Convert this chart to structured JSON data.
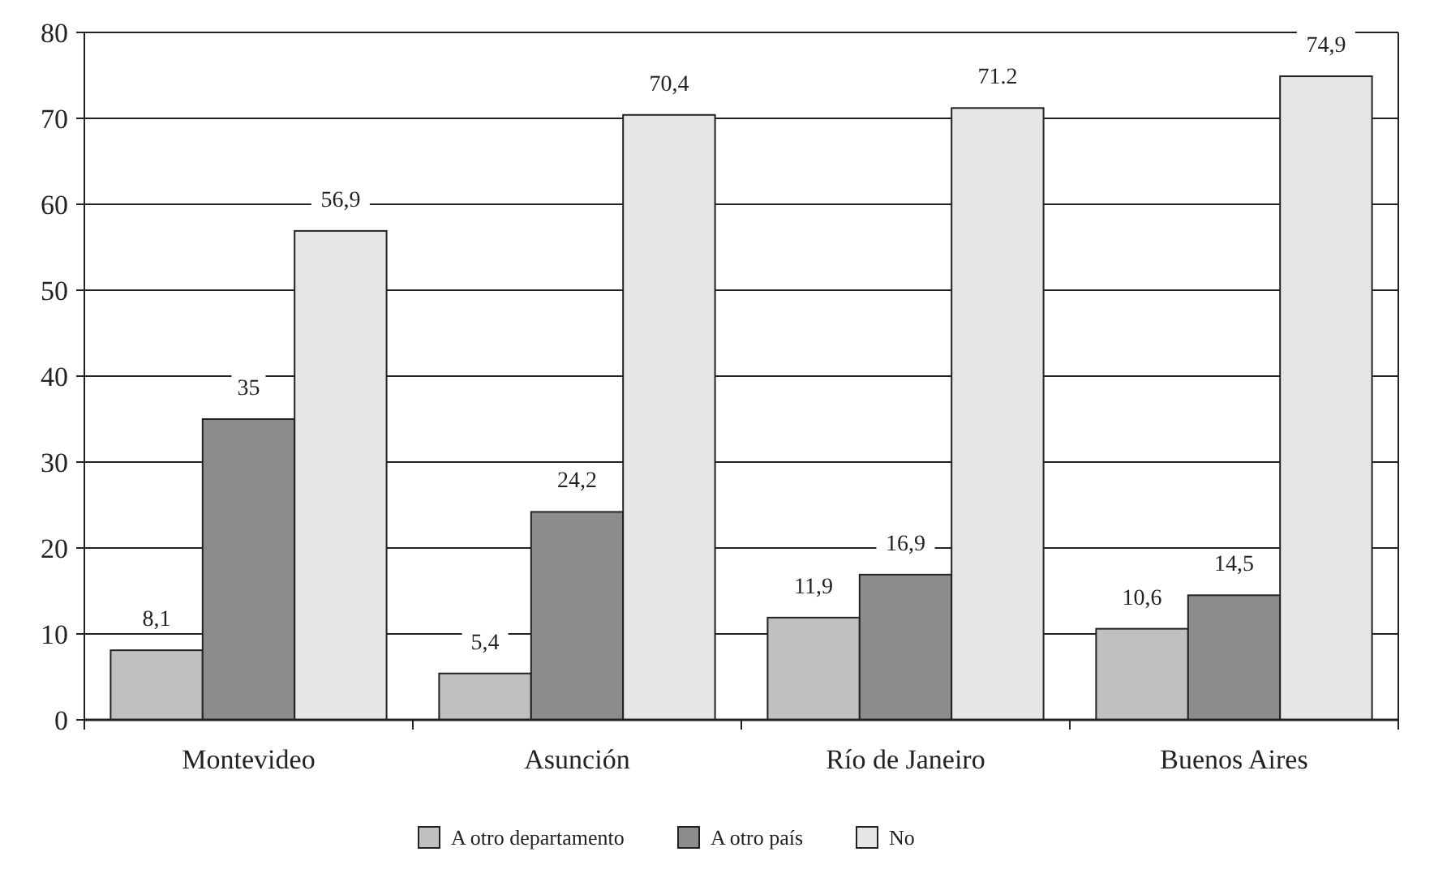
{
  "chart_data": {
    "type": "bar",
    "categories": [
      "Montevideo",
      "Asunción",
      "Río de Janeiro",
      "Buenos Aires"
    ],
    "series": [
      {
        "name": "A otro departamento",
        "color": "#c0c0c0",
        "values": [
          8.1,
          5.4,
          11.9,
          10.6
        ],
        "value_labels": [
          "8,1",
          "5,4",
          "11,9",
          "10,6"
        ]
      },
      {
        "name": "A otro país",
        "color": "#8c8c8c",
        "values": [
          35,
          24.2,
          16.9,
          14.5
        ],
        "value_labels": [
          "35",
          "24,2",
          "16,9",
          "14,5"
        ]
      },
      {
        "name": "No",
        "color": "#e6e6e6",
        "values": [
          56.9,
          70.4,
          71.2,
          74.9
        ],
        "value_labels": [
          "56,9",
          "70,4",
          "71.2",
          "74,9"
        ]
      }
    ],
    "ylim": [
      0,
      80
    ],
    "yticks": [
      0,
      10,
      20,
      30,
      40,
      50,
      60,
      70,
      80
    ],
    "grid": "y",
    "legend": "bottom"
  }
}
